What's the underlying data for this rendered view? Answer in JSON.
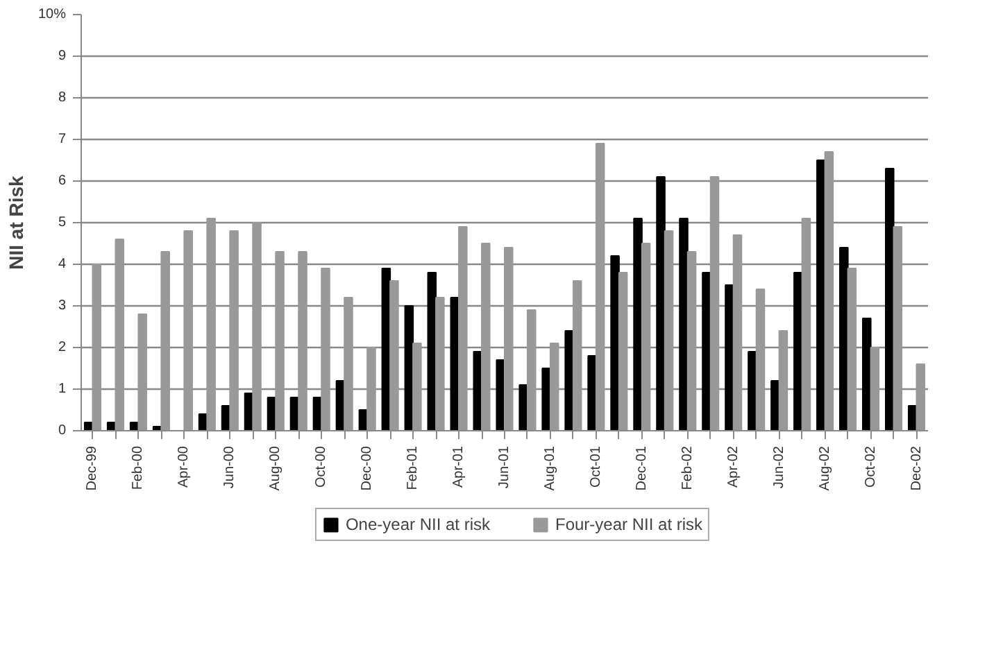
{
  "chart_data": {
    "type": "bar",
    "ylabel": "NII at Risk",
    "categories": [
      "Dec-99",
      null,
      "Feb-00",
      null,
      "Apr-00",
      null,
      "Jun-00",
      null,
      "Aug-00",
      null,
      "Oct-00",
      null,
      "Dec-00",
      null,
      "Feb-01",
      null,
      "Apr-01",
      null,
      "Jun-01",
      null,
      "Aug-01",
      null,
      "Oct-01",
      null,
      "Dec-01",
      null,
      "Feb-02",
      null,
      "Apr-02",
      null,
      "Jun-02",
      null,
      "Aug-02",
      null,
      "Oct-02",
      null,
      "Dec-02"
    ],
    "series": [
      {
        "name": "One-year NII at risk",
        "color": "#000000",
        "values": [
          0.2,
          0.2,
          0.2,
          0.1,
          0,
          0.4,
          0.6,
          0.9,
          0.8,
          0.8,
          0.8,
          1.2,
          0.5,
          3.9,
          3.0,
          3.8,
          3.2,
          1.9,
          1.7,
          1.1,
          1.5,
          2.4,
          1.8,
          4.2,
          5.1,
          6.1,
          5.1,
          3.8,
          3.5,
          1.9,
          1.2,
          3.8,
          6.5,
          4.4,
          2.7,
          6.3,
          0.6
        ]
      },
      {
        "name": "Four-year NII at risk",
        "color": "#999999",
        "values": [
          4.0,
          4.6,
          2.8,
          4.3,
          4.8,
          5.1,
          4.8,
          5.0,
          4.3,
          4.3,
          3.9,
          3.2,
          2.0,
          3.6,
          2.1,
          3.2,
          4.9,
          4.5,
          4.4,
          2.9,
          2.1,
          3.6,
          6.9,
          3.8,
          4.5,
          4.8,
          4.3,
          6.1,
          4.7,
          3.4,
          2.4,
          5.1,
          6.7,
          3.9,
          2.0,
          4.9,
          1.6
        ]
      }
    ],
    "ylim": [
      0,
      10
    ],
    "yticks": [
      0,
      1,
      2,
      3,
      4,
      5,
      6,
      7,
      8,
      9,
      {
        "value": 10,
        "label": "10%"
      }
    ],
    "grid": "y",
    "legend": "bottom"
  }
}
